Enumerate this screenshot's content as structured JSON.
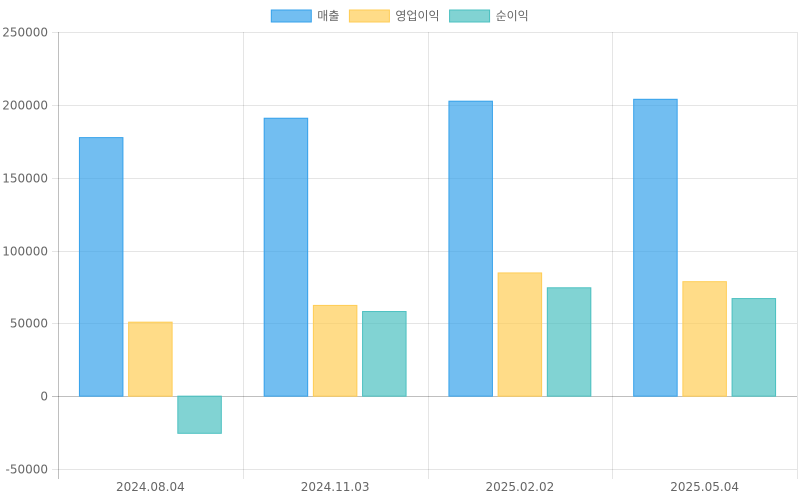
{
  "chart_data": {
    "type": "bar",
    "categories": [
      "2024.08.04",
      "2024.11.03",
      "2025.02.02",
      "2025.05.04"
    ],
    "series": [
      {
        "name": "매출",
        "values": [
          177500,
          190800,
          202500,
          203800
        ],
        "color": "#36A2EB"
      },
      {
        "name": "영업이익",
        "values": [
          50800,
          62300,
          84600,
          78600
        ],
        "color": "#FFCD56"
      },
      {
        "name": "순이익",
        "values": [
          -25500,
          58100,
          74400,
          67000
        ],
        "color": "#4BC0C0"
      }
    ],
    "ylim": [
      -50000,
      250000
    ],
    "yticks": [
      250000,
      200000,
      150000,
      100000,
      50000,
      0,
      -50000
    ],
    "grid": true,
    "legend": "top-center",
    "title": "",
    "xlabel": "",
    "ylabel": ""
  }
}
